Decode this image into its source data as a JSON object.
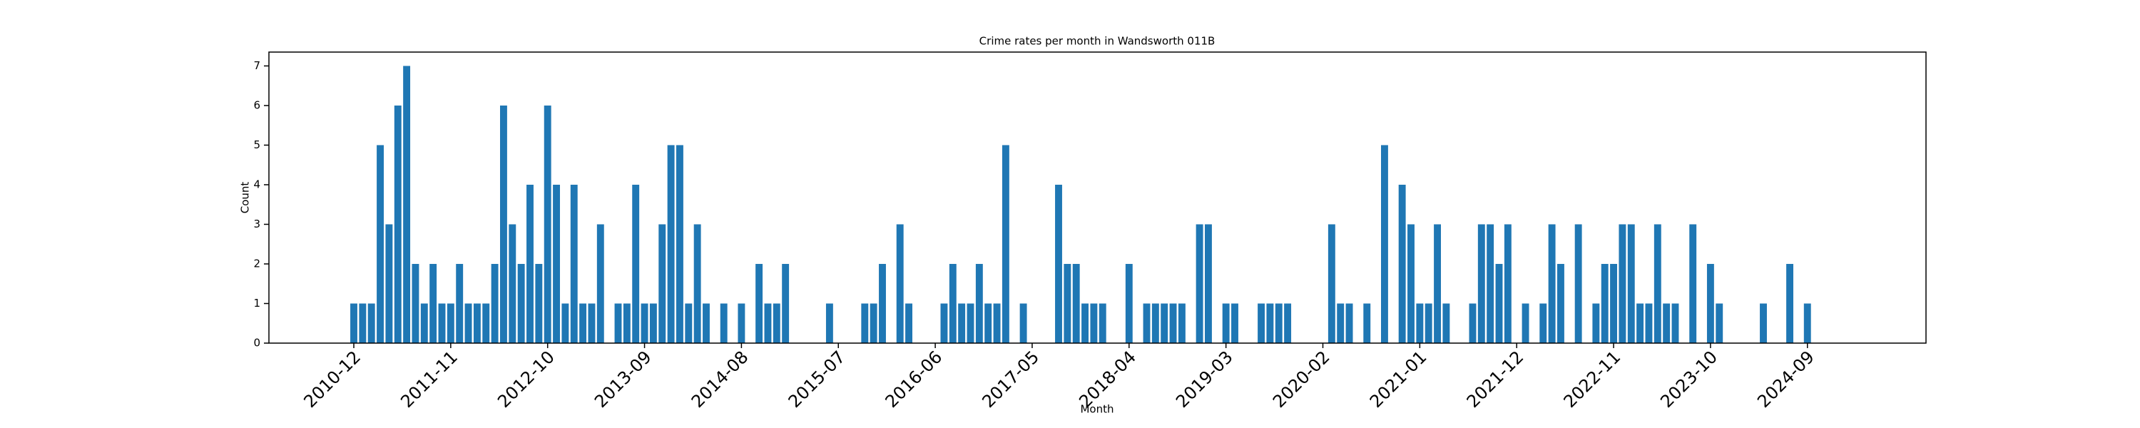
{
  "chart_data": {
    "type": "bar",
    "title": "Crime rates per month in Wandsworth 011B",
    "x_label": "Month",
    "y_label": "Count",
    "color": "#1f77b4",
    "categories": [
      "2010-12",
      null,
      null,
      null,
      null,
      null,
      null,
      null,
      null,
      null,
      null,
      "2011-11",
      null,
      null,
      null,
      null,
      null,
      null,
      null,
      null,
      null,
      null,
      "2012-10",
      null,
      null,
      null,
      null,
      null,
      null,
      null,
      null,
      null,
      null,
      "2013-09",
      null,
      null,
      null,
      null,
      null,
      null,
      null,
      null,
      null,
      null,
      "2014-08",
      null,
      null,
      null,
      null,
      null,
      null,
      null,
      null,
      null,
      null,
      "2015-07",
      null,
      null,
      null,
      null,
      null,
      null,
      null,
      null,
      null,
      null,
      "2016-06",
      null,
      null,
      null,
      null,
      null,
      null,
      null,
      null,
      null,
      null,
      "2017-05",
      null,
      null,
      null,
      null,
      null,
      null,
      null,
      null,
      null,
      null,
      "2018-04",
      null,
      null,
      null,
      null,
      null,
      null,
      null,
      null,
      null,
      null,
      "2019-03",
      null,
      null,
      null,
      null,
      null,
      null,
      null,
      null,
      null,
      null,
      "2020-02",
      null,
      null,
      null,
      null,
      null,
      null,
      null,
      null,
      null,
      null,
      "2021-01",
      null,
      null,
      null,
      null,
      null,
      null,
      null,
      null,
      null,
      null,
      "2021-12",
      null,
      null,
      null,
      null,
      null,
      null,
      null,
      null,
      null,
      null,
      "2022-11",
      null,
      null,
      null,
      null,
      null,
      null,
      null,
      null,
      null,
      null,
      "2023-10",
      null,
      null,
      null,
      null,
      null,
      null,
      null,
      null,
      null,
      null,
      "2024-09"
    ],
    "values": [
      1,
      1,
      1,
      5,
      3,
      6,
      7,
      2,
      1,
      2,
      1,
      1,
      2,
      1,
      1,
      1,
      2,
      6,
      3,
      2,
      4,
      2,
      6,
      4,
      1,
      4,
      1,
      1,
      3,
      null,
      1,
      1,
      4,
      1,
      1,
      3,
      5,
      5,
      1,
      3,
      1,
      null,
      1,
      null,
      1,
      null,
      2,
      1,
      1,
      2,
      null,
      null,
      null,
      null,
      1,
      null,
      null,
      null,
      1,
      1,
      2,
      null,
      3,
      1,
      null,
      null,
      null,
      1,
      2,
      1,
      1,
      2,
      1,
      1,
      5,
      null,
      1,
      null,
      null,
      null,
      4,
      2,
      2,
      1,
      1,
      1,
      null,
      null,
      2,
      null,
      1,
      1,
      1,
      1,
      1,
      null,
      3,
      3,
      null,
      1,
      1,
      null,
      null,
      1,
      1,
      1,
      1,
      null,
      null,
      null,
      null,
      3,
      1,
      1,
      null,
      1,
      null,
      5,
      null,
      4,
      3,
      1,
      1,
      3,
      1,
      null,
      null,
      1,
      3,
      3,
      2,
      3,
      null,
      1,
      null,
      1,
      3,
      2,
      null,
      3,
      null,
      1,
      2,
      2,
      3,
      3,
      1,
      1,
      3,
      1,
      1,
      null,
      3,
      null,
      2,
      1,
      null,
      null,
      null,
      null,
      1,
      null,
      null,
      2,
      null,
      1
    ],
    "ylim": [
      0,
      7.35
    ],
    "yticks": [
      0,
      1,
      2,
      3,
      4,
      5,
      6,
      7
    ]
  }
}
